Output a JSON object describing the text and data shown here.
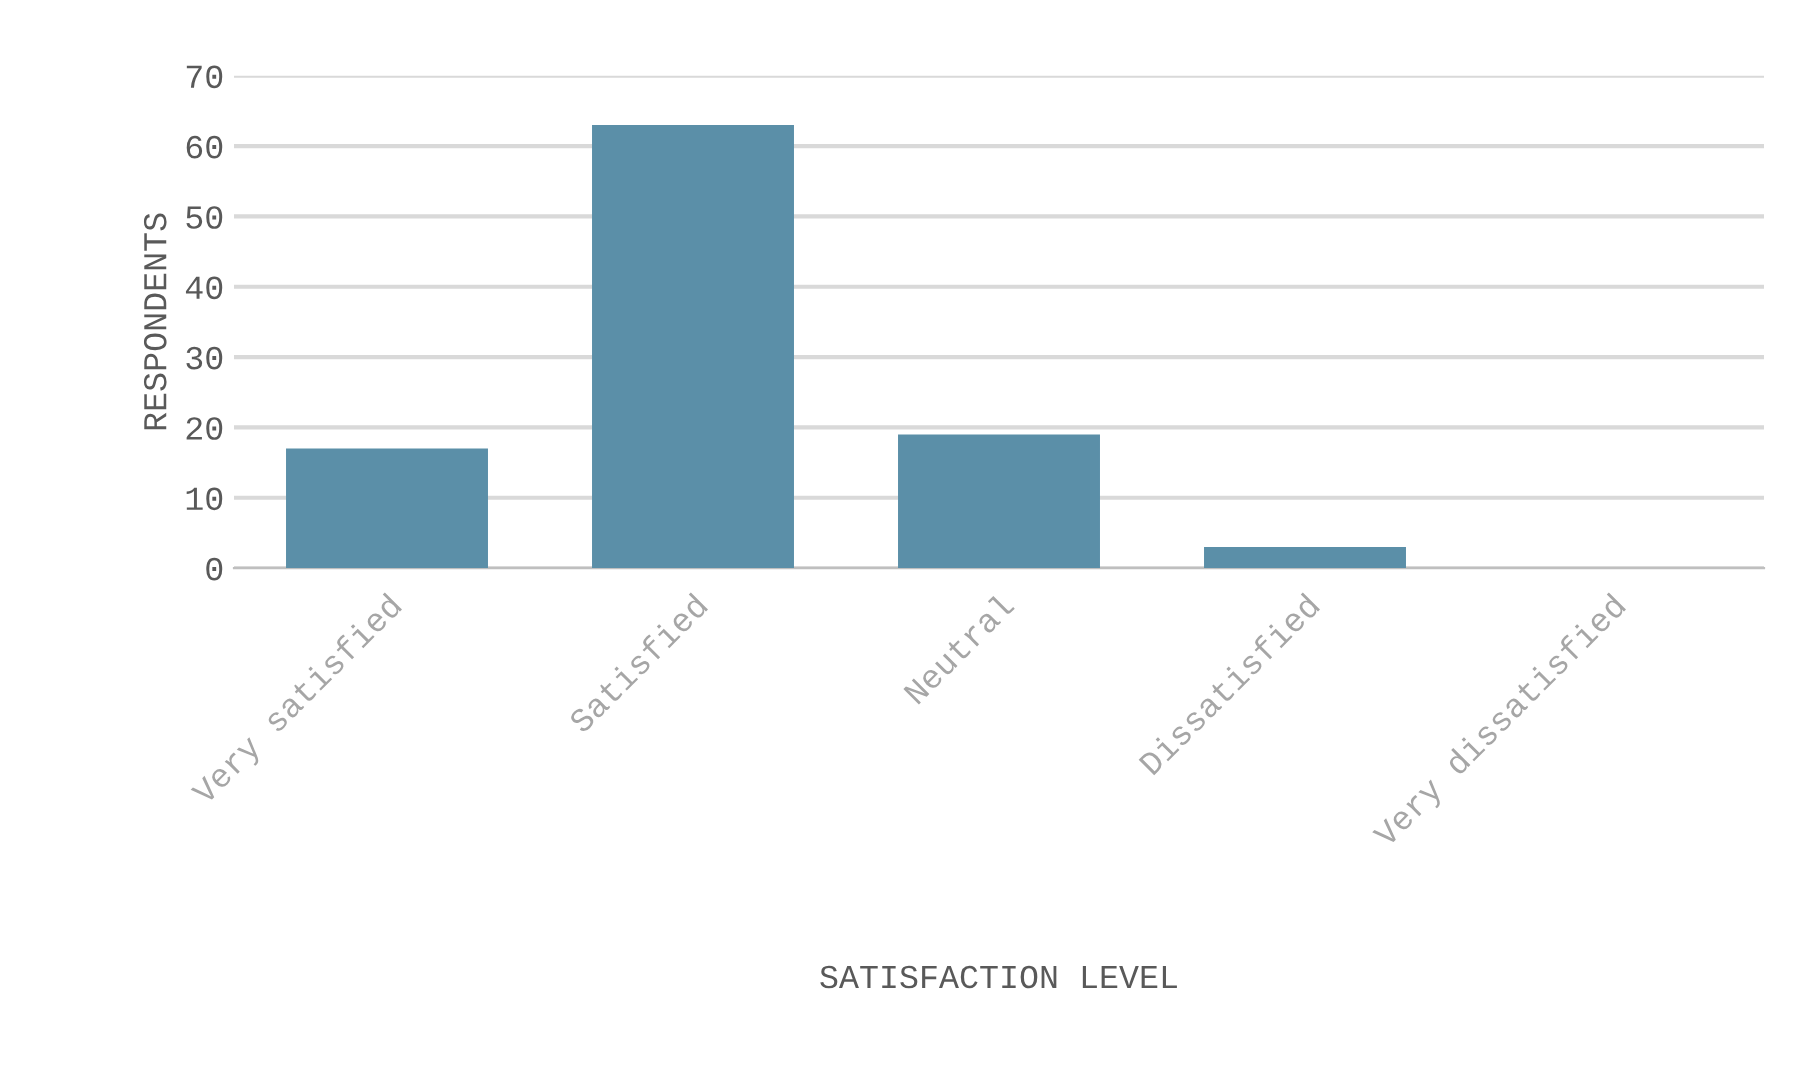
{
  "chart_data": {
    "type": "bar",
    "xlabel": "SATISFACTION LEVEL",
    "ylabel": "RESPONDENTS",
    "categories": [
      "Very satisfied",
      "Satisfied",
      "Neutral",
      "Dissatisfied",
      "Very dissatisfied"
    ],
    "values": [
      17,
      63,
      19,
      3,
      0
    ],
    "color": "#5b8fa8",
    "ylim": [
      0,
      70
    ],
    "yticks": [
      0,
      10,
      20,
      30,
      40,
      50,
      60,
      70
    ],
    "grid": "y"
  }
}
